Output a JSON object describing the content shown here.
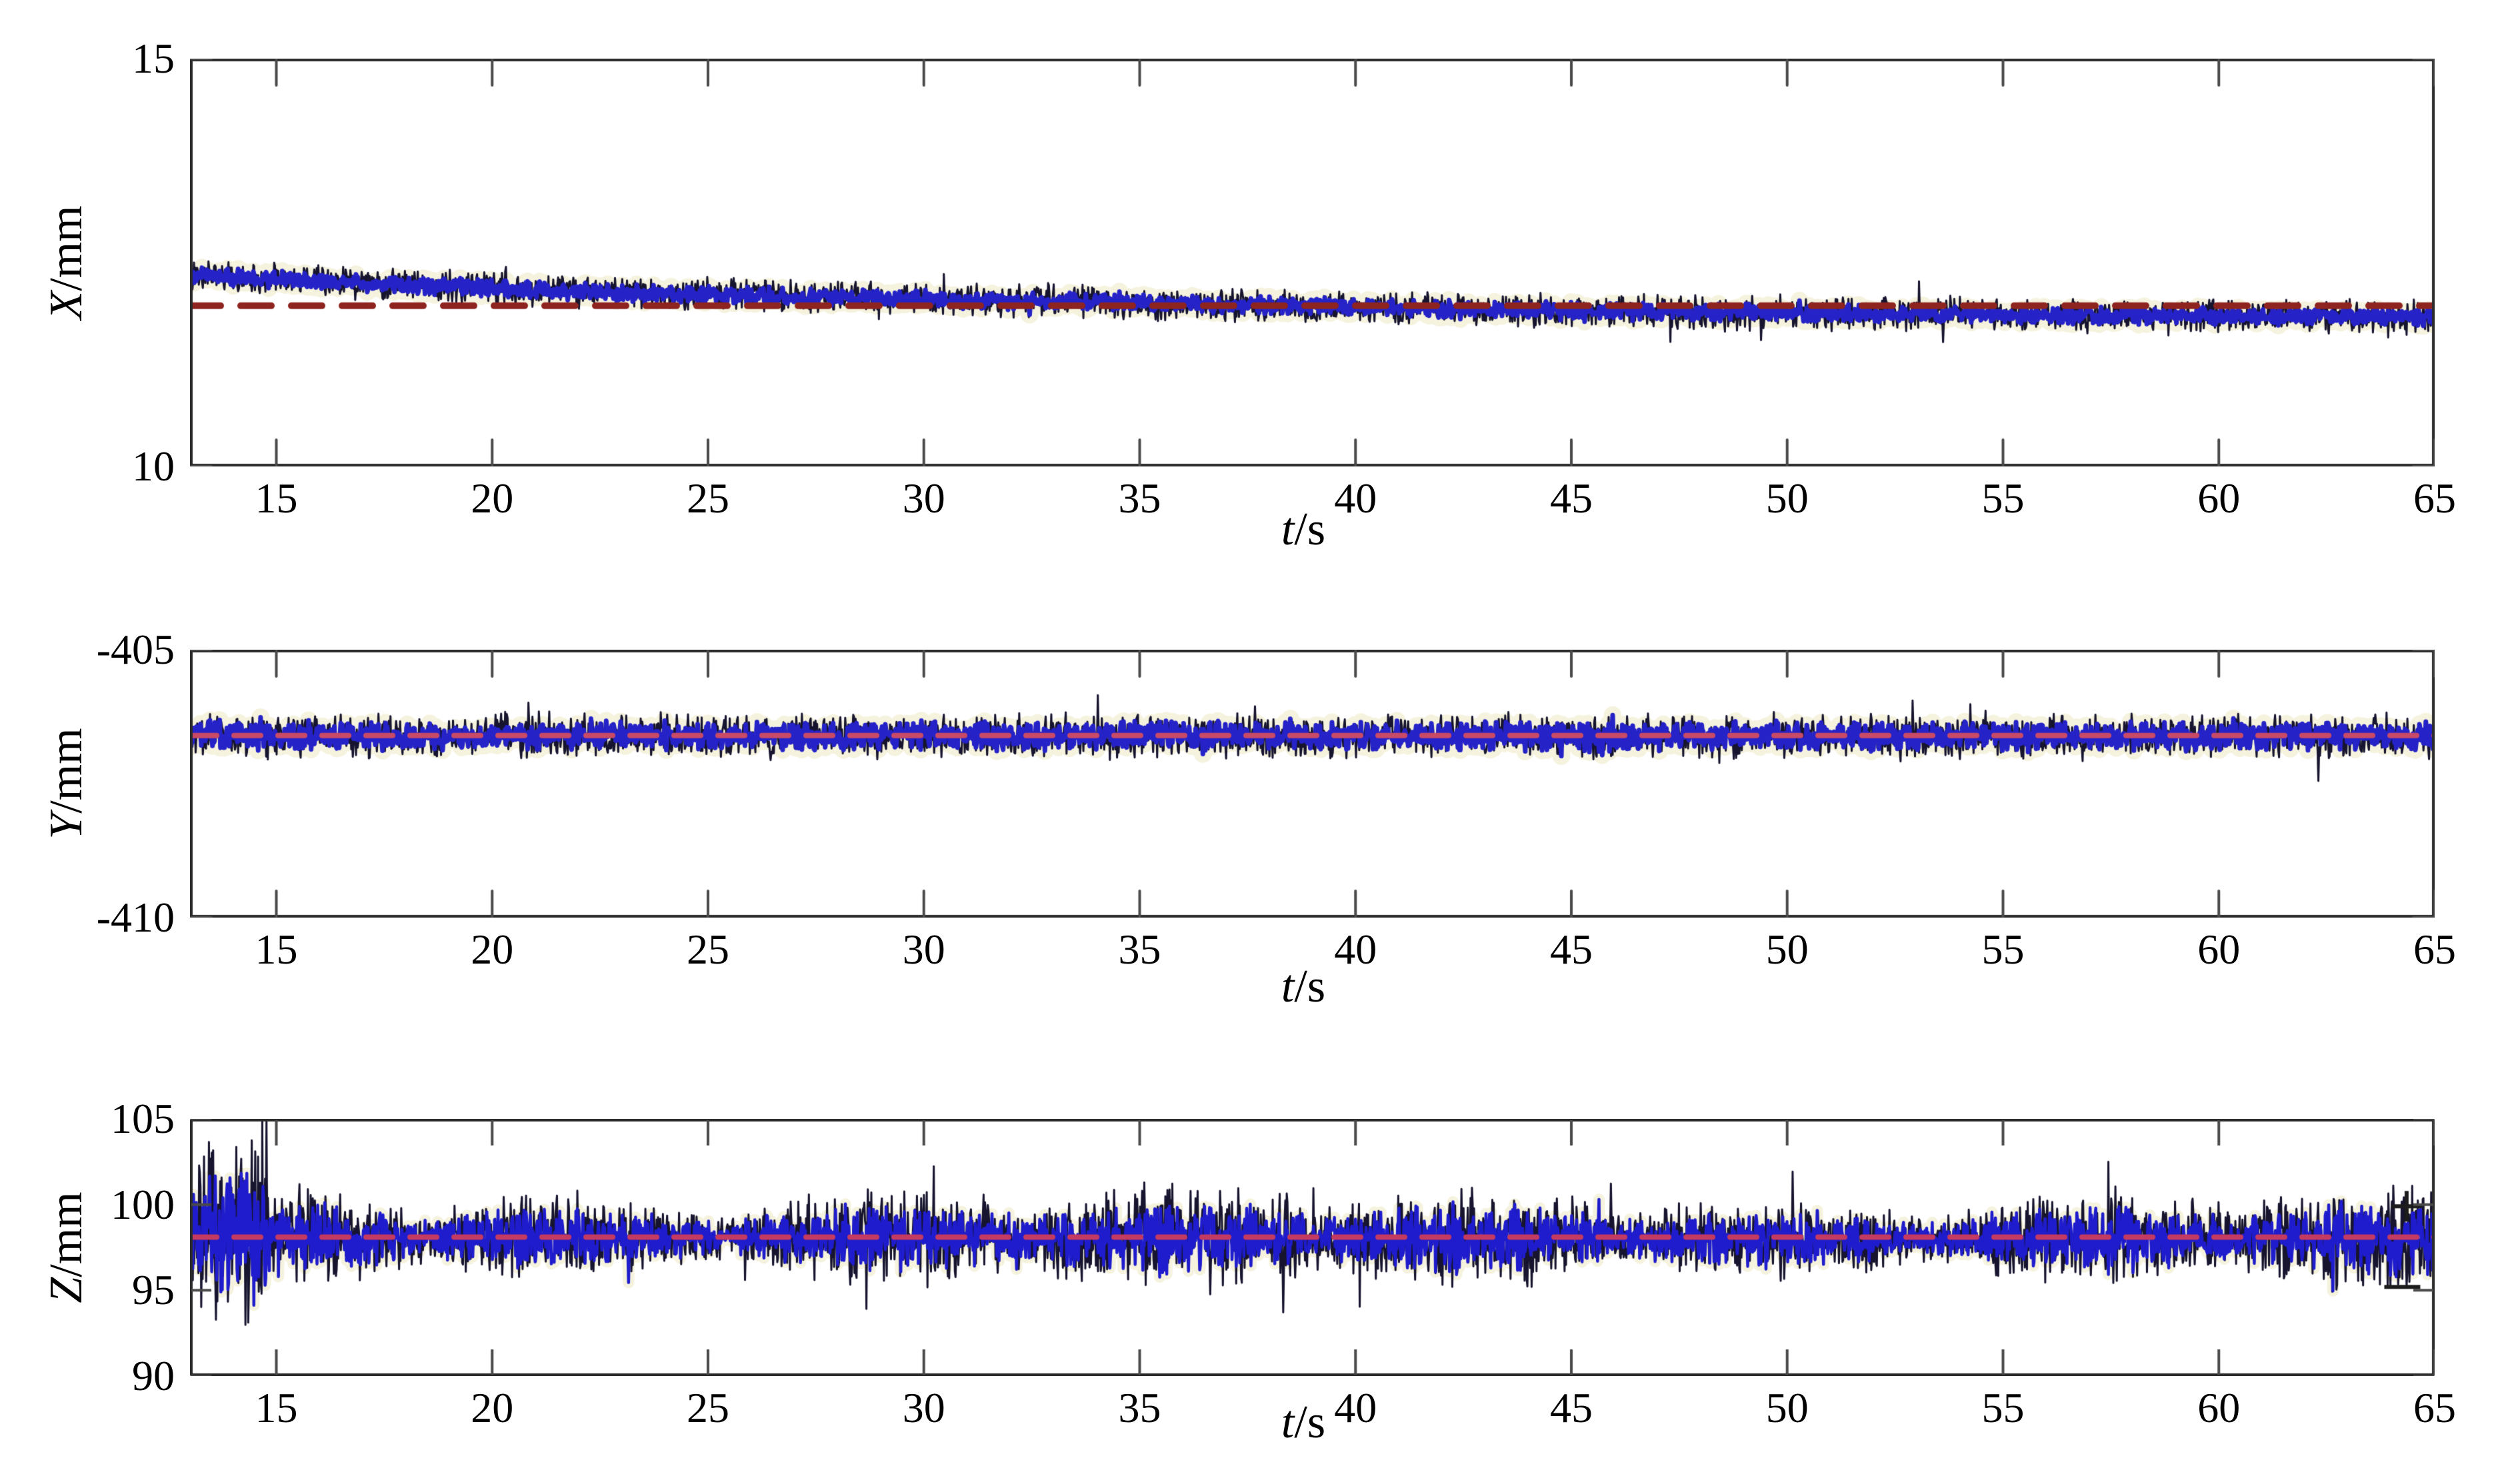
{
  "figure": {
    "background": "#ffffff",
    "border_color": "#2b2b2b",
    "tick_color": "#4a4a4a",
    "label_color": "#000000"
  },
  "axis": {
    "xlabel_var": "t",
    "xlabel_unit": "/s",
    "xlim": [
      13,
      65
    ],
    "xticks": [
      {
        "label": "15",
        "value": 15
      },
      {
        "label": "20",
        "value": 20
      },
      {
        "label": "25",
        "value": 25
      },
      {
        "label": "30",
        "value": 30
      },
      {
        "label": "35",
        "value": 35
      },
      {
        "label": "40",
        "value": 40
      },
      {
        "label": "45",
        "value": 45
      },
      {
        "label": "50",
        "value": 50
      },
      {
        "label": "55",
        "value": 55
      },
      {
        "label": "60",
        "value": 60
      },
      {
        "label": "65",
        "value": 65
      }
    ]
  },
  "chart_data": [
    {
      "type": "line",
      "panel": "x-position",
      "xlabel_var": "t",
      "xlabel_unit": "/s",
      "ylabel_var": "X",
      "ylabel_unit": "/mm",
      "xlim": [
        13,
        65
      ],
      "ylim": [
        10,
        15
      ],
      "grid": false,
      "yticks": [
        {
          "label": "15",
          "value": 15
        },
        {
          "label": "10",
          "value": 10
        }
      ],
      "series": [
        {
          "name": "measured-x-position",
          "kind": "noisy-line",
          "color": "#2522c8",
          "spike_color": "#16142e",
          "halo_color": "#f5f2dd",
          "line_width": 7,
          "trend_points": [
            [
              13,
              12.35
            ],
            [
              18,
              12.22
            ],
            [
              23,
              12.13
            ],
            [
              28,
              12.07
            ],
            [
              33,
              12.02
            ],
            [
              38,
              11.97
            ],
            [
              43,
              11.92
            ],
            [
              48,
              11.89
            ],
            [
              53,
              11.87
            ],
            [
              58,
              11.85
            ],
            [
              65,
              11.83
            ]
          ],
          "noise_amp": 0.12,
          "spike_amp": 0.23,
          "points": 2800,
          "seed": 101
        },
        {
          "name": "reference-x",
          "kind": "dashed-line",
          "color": "#8e2420",
          "value": 11.97,
          "line_width": 10,
          "dash": [
            46,
            30
          ]
        }
      ]
    },
    {
      "type": "line",
      "panel": "y-position",
      "xlabel_var": "t",
      "xlabel_unit": "/s",
      "ylabel_var": "Y",
      "ylabel_unit": "/mm",
      "xlim": [
        13,
        65
      ],
      "ylim": [
        -410,
        -405
      ],
      "grid": false,
      "yticks": [
        {
          "label": "-405",
          "value": -405
        },
        {
          "label": "-410",
          "value": -410
        }
      ],
      "series": [
        {
          "name": "measured-y-position",
          "kind": "noisy-line",
          "color": "#2522c8",
          "spike_color": "#16142e",
          "halo_color": "#f5f2dd",
          "line_width": 7,
          "trend_points": [
            [
              13,
              -406.6
            ],
            [
              65,
              -406.62
            ]
          ],
          "noise_amp": 0.3,
          "spike_amp": 0.46,
          "points": 2800,
          "seed": 202
        },
        {
          "name": "reference-y",
          "kind": "dashed-line",
          "color": "#c94a66",
          "value": -406.6,
          "line_width": 8,
          "dash": [
            40,
            26
          ]
        }
      ]
    },
    {
      "type": "line",
      "panel": "z-position",
      "xlabel_var": "t",
      "xlabel_unit": "/s",
      "ylabel_var": "Z",
      "ylabel_unit": "/mm",
      "xlim": [
        13,
        65
      ],
      "ylim": [
        90,
        105
      ],
      "grid": false,
      "yticks": [
        {
          "label": "105",
          "value": 105
        },
        {
          "label": "100",
          "value": 100
        },
        {
          "label": "95",
          "value": 95
        },
        {
          "label": "90",
          "value": 90
        }
      ],
      "series": [
        {
          "name": "measured-z-position",
          "kind": "noisy-line",
          "color": "#1f1ccd",
          "spike_color": "#16142e",
          "halo_color": "#f5f2dd",
          "line_width": 4.5,
          "trend_points": [
            [
              13,
              98.1
            ],
            [
              65,
              98.0
            ]
          ],
          "noise_amp": 1.6,
          "spike_amp": 2.3,
          "points": 3200,
          "seed": 303,
          "envelope": {
            "base": 0.5,
            "wave1": {
              "amp": 0.62,
              "freq": 0.45,
              "phase": 1.15
            },
            "wave2": {
              "amp": 0.42,
              "freq": 0.115,
              "phase": 0.4
            },
            "early_until": 14.8,
            "early_gain": 1.9
          }
        },
        {
          "name": "reference-z",
          "kind": "dashed-line",
          "color": "#c43a60",
          "value": 98.1,
          "line_width": 8,
          "dash": [
            40,
            26
          ]
        }
      ],
      "markers": [
        {
          "shape": "plus",
          "x": 64.35,
          "y": 99.9,
          "size": 46,
          "color": "#1c1c1c"
        },
        {
          "shape": "dash",
          "x": 64.25,
          "y": 95.2,
          "size": 54,
          "color": "#1c1c1c"
        }
      ]
    }
  ]
}
